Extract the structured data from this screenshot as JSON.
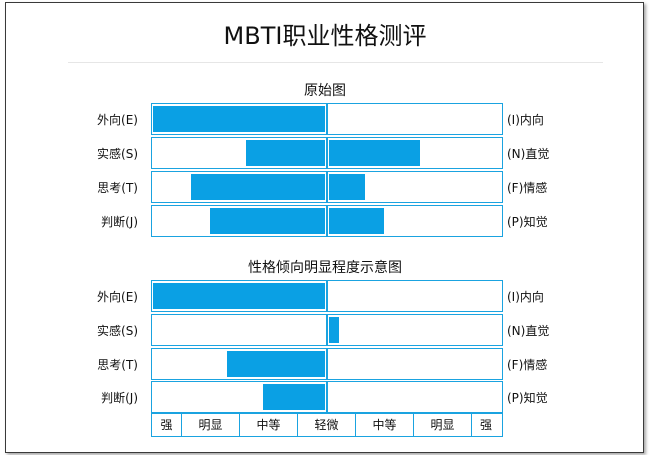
{
  "title": "MBTI职业性格测评",
  "sections": [
    {
      "title": "原始图",
      "rows": [
        {
          "left": "外向(E)",
          "right": "(I)内向",
          "left_value": 1.0,
          "right_value": 0.0
        },
        {
          "left": "实感(S)",
          "right": "(N)直觉",
          "left_value": 0.46,
          "right_value": 0.53
        },
        {
          "left": "思考(T)",
          "right": "(F)情感",
          "left_value": 0.78,
          "right_value": 0.21
        },
        {
          "left": "判断(J)",
          "right": "(P)知觉",
          "left_value": 0.67,
          "right_value": 0.32
        }
      ]
    },
    {
      "title": "性格倾向明显程度示意图",
      "rows": [
        {
          "left": "外向(E)",
          "right": "(I)内向",
          "left_value": 1.0,
          "right_value": 0.0
        },
        {
          "left": "实感(S)",
          "right": "(N)直觉",
          "left_value": 0.0,
          "right_value": 0.06
        },
        {
          "left": "思考(T)",
          "right": "(F)情感",
          "left_value": 0.57,
          "right_value": 0.0
        },
        {
          "left": "判断(J)",
          "right": "(P)知觉",
          "left_value": 0.36,
          "right_value": 0.0
        }
      ]
    }
  ],
  "scale": [
    "强",
    "明显",
    "中等",
    "轻微",
    "中等",
    "明显",
    "强"
  ]
}
